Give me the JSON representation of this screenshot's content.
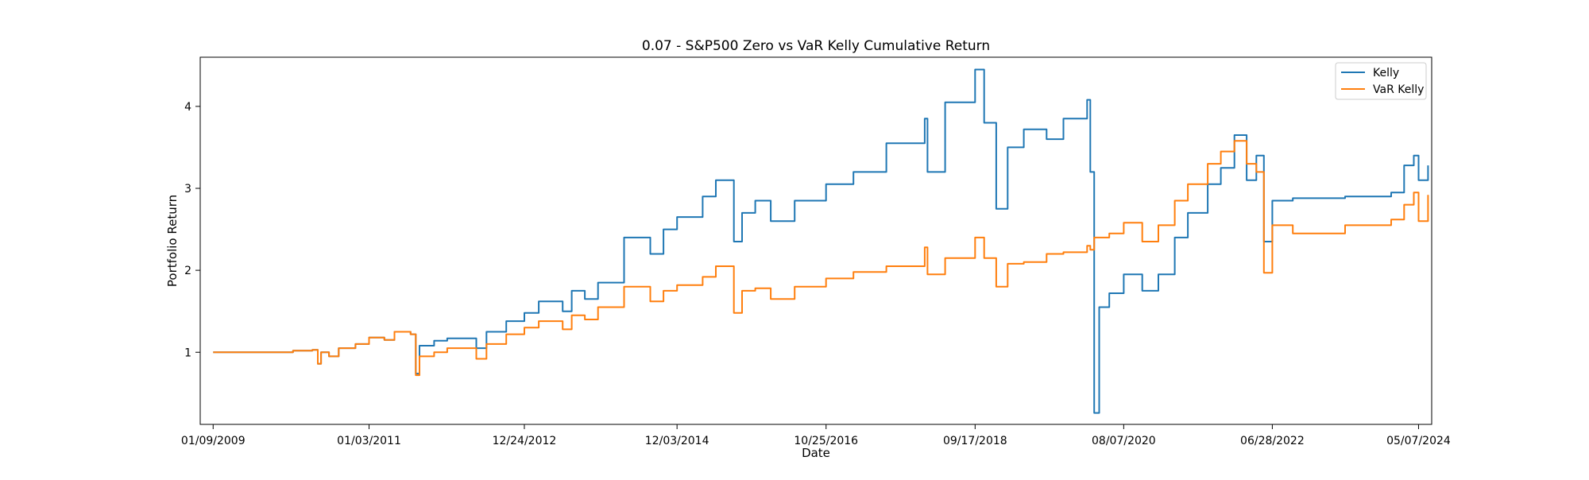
{
  "chart_data": {
    "type": "line",
    "title": "0.07 - S&P500 Zero vs VaR Kelly Cumulative Return",
    "xlabel": "Date",
    "ylabel": "Portfolio Return",
    "x_range": [
      "2008-11-10",
      "2024-07-07"
    ],
    "y_range": [
      0.12,
      4.6
    ],
    "x_ticks": [
      {
        "date": "2009-01-09",
        "label": "01/09/2009"
      },
      {
        "date": "2011-01-03",
        "label": "01/03/2011"
      },
      {
        "date": "2012-12-24",
        "label": "12/24/2012"
      },
      {
        "date": "2014-12-03",
        "label": "12/03/2014"
      },
      {
        "date": "2016-10-25",
        "label": "10/25/2016"
      },
      {
        "date": "2018-09-17",
        "label": "09/17/2018"
      },
      {
        "date": "2020-08-07",
        "label": "08/07/2020"
      },
      {
        "date": "2022-06-28",
        "label": "06/28/2022"
      },
      {
        "date": "2024-05-07",
        "label": "05/07/2024"
      }
    ],
    "y_ticks": [
      1,
      2,
      3,
      4
    ],
    "grid": false,
    "legend_position": "top-right",
    "series": [
      {
        "name": "Kelly",
        "color": "#1f77b4",
        "points": [
          [
            "2009-01-09",
            1.0
          ],
          [
            "2010-01-15",
            1.02
          ],
          [
            "2010-04-15",
            1.03
          ],
          [
            "2010-05-10",
            0.86
          ],
          [
            "2010-05-25",
            1.0
          ],
          [
            "2010-07-01",
            0.95
          ],
          [
            "2010-08-15",
            1.05
          ],
          [
            "2010-11-01",
            1.1
          ],
          [
            "2011-01-03",
            1.18
          ],
          [
            "2011-03-15",
            1.15
          ],
          [
            "2011-05-01",
            1.25
          ],
          [
            "2011-07-15",
            1.22
          ],
          [
            "2011-08-08",
            0.74
          ],
          [
            "2011-08-25",
            1.08
          ],
          [
            "2011-11-01",
            1.14
          ],
          [
            "2012-01-01",
            1.17
          ],
          [
            "2012-05-15",
            1.05
          ],
          [
            "2012-07-01",
            1.25
          ],
          [
            "2012-10-01",
            1.38
          ],
          [
            "2012-12-24",
            1.48
          ],
          [
            "2013-03-01",
            1.62
          ],
          [
            "2013-06-20",
            1.5
          ],
          [
            "2013-08-01",
            1.75
          ],
          [
            "2013-10-01",
            1.65
          ],
          [
            "2013-12-01",
            1.85
          ],
          [
            "2014-04-01",
            2.4
          ],
          [
            "2014-08-01",
            2.2
          ],
          [
            "2014-10-01",
            2.5
          ],
          [
            "2014-12-03",
            2.65
          ],
          [
            "2015-04-01",
            2.9
          ],
          [
            "2015-06-01",
            3.1
          ],
          [
            "2015-08-24",
            2.35
          ],
          [
            "2015-10-01",
            2.7
          ],
          [
            "2015-12-01",
            2.85
          ],
          [
            "2016-02-11",
            2.6
          ],
          [
            "2016-06-01",
            2.85
          ],
          [
            "2016-10-25",
            3.05
          ],
          [
            "2017-03-01",
            3.2
          ],
          [
            "2017-08-01",
            3.55
          ],
          [
            "2018-01-26",
            3.85
          ],
          [
            "2018-02-08",
            3.2
          ],
          [
            "2018-05-01",
            4.05
          ],
          [
            "2018-09-17",
            4.45
          ],
          [
            "2018-10-29",
            3.8
          ],
          [
            "2018-12-24",
            2.75
          ],
          [
            "2019-02-15",
            3.5
          ],
          [
            "2019-05-01",
            3.72
          ],
          [
            "2019-08-15",
            3.6
          ],
          [
            "2019-11-01",
            3.85
          ],
          [
            "2020-02-19",
            4.08
          ],
          [
            "2020-03-05",
            3.2
          ],
          [
            "2020-03-23",
            0.26
          ],
          [
            "2020-04-15",
            1.55
          ],
          [
            "2020-06-01",
            1.72
          ],
          [
            "2020-08-07",
            1.95
          ],
          [
            "2020-11-01",
            1.75
          ],
          [
            "2021-01-15",
            1.95
          ],
          [
            "2021-04-01",
            2.4
          ],
          [
            "2021-06-01",
            2.7
          ],
          [
            "2021-09-01",
            3.05
          ],
          [
            "2021-11-01",
            3.25
          ],
          [
            "2022-01-03",
            3.65
          ],
          [
            "2022-03-01",
            3.1
          ],
          [
            "2022-04-15",
            3.4
          ],
          [
            "2022-05-20",
            2.35
          ],
          [
            "2022-06-28",
            2.85
          ],
          [
            "2022-10-01",
            2.88
          ],
          [
            "2023-06-01",
            2.9
          ],
          [
            "2024-01-01",
            2.95
          ],
          [
            "2024-03-01",
            3.28
          ],
          [
            "2024-04-15",
            3.4
          ],
          [
            "2024-05-07",
            3.1
          ],
          [
            "2024-06-20",
            3.28
          ]
        ]
      },
      {
        "name": "VaR Kelly",
        "color": "#ff7f0e",
        "points": [
          [
            "2009-01-09",
            1.0
          ],
          [
            "2010-01-15",
            1.02
          ],
          [
            "2010-04-15",
            1.03
          ],
          [
            "2010-05-10",
            0.86
          ],
          [
            "2010-05-25",
            1.0
          ],
          [
            "2010-07-01",
            0.95
          ],
          [
            "2010-08-15",
            1.05
          ],
          [
            "2010-11-01",
            1.1
          ],
          [
            "2011-01-03",
            1.18
          ],
          [
            "2011-03-15",
            1.15
          ],
          [
            "2011-05-01",
            1.25
          ],
          [
            "2011-07-15",
            1.22
          ],
          [
            "2011-08-08",
            0.72
          ],
          [
            "2011-08-25",
            0.95
          ],
          [
            "2011-11-01",
            1.0
          ],
          [
            "2012-01-01",
            1.05
          ],
          [
            "2012-05-15",
            0.92
          ],
          [
            "2012-07-01",
            1.1
          ],
          [
            "2012-10-01",
            1.22
          ],
          [
            "2012-12-24",
            1.3
          ],
          [
            "2013-03-01",
            1.38
          ],
          [
            "2013-06-20",
            1.28
          ],
          [
            "2013-08-01",
            1.45
          ],
          [
            "2013-10-01",
            1.4
          ],
          [
            "2013-12-01",
            1.55
          ],
          [
            "2014-04-01",
            1.8
          ],
          [
            "2014-08-01",
            1.62
          ],
          [
            "2014-10-01",
            1.75
          ],
          [
            "2014-12-03",
            1.82
          ],
          [
            "2015-04-01",
            1.92
          ],
          [
            "2015-06-01",
            2.05
          ],
          [
            "2015-08-24",
            1.48
          ],
          [
            "2015-10-01",
            1.75
          ],
          [
            "2015-12-01",
            1.78
          ],
          [
            "2016-02-11",
            1.65
          ],
          [
            "2016-06-01",
            1.8
          ],
          [
            "2016-10-25",
            1.9
          ],
          [
            "2017-03-01",
            1.98
          ],
          [
            "2017-08-01",
            2.05
          ],
          [
            "2018-01-26",
            2.28
          ],
          [
            "2018-02-08",
            1.95
          ],
          [
            "2018-05-01",
            2.15
          ],
          [
            "2018-09-17",
            2.4
          ],
          [
            "2018-10-29",
            2.15
          ],
          [
            "2018-12-24",
            1.8
          ],
          [
            "2019-02-15",
            2.08
          ],
          [
            "2019-05-01",
            2.1
          ],
          [
            "2019-08-15",
            2.2
          ],
          [
            "2019-11-01",
            2.22
          ],
          [
            "2020-02-19",
            2.3
          ],
          [
            "2020-03-05",
            2.25
          ],
          [
            "2020-03-23",
            2.4
          ],
          [
            "2020-06-01",
            2.45
          ],
          [
            "2020-08-07",
            2.58
          ],
          [
            "2020-11-01",
            2.35
          ],
          [
            "2021-01-15",
            2.55
          ],
          [
            "2021-04-01",
            2.85
          ],
          [
            "2021-06-01",
            3.05
          ],
          [
            "2021-09-01",
            3.3
          ],
          [
            "2021-11-01",
            3.45
          ],
          [
            "2022-01-03",
            3.58
          ],
          [
            "2022-03-01",
            3.3
          ],
          [
            "2022-04-15",
            3.2
          ],
          [
            "2022-05-20",
            1.97
          ],
          [
            "2022-06-28",
            2.55
          ],
          [
            "2022-10-01",
            2.45
          ],
          [
            "2023-06-01",
            2.55
          ],
          [
            "2024-01-01",
            2.62
          ],
          [
            "2024-03-01",
            2.8
          ],
          [
            "2024-04-15",
            2.95
          ],
          [
            "2024-05-07",
            2.6
          ],
          [
            "2024-06-20",
            2.92
          ]
        ]
      }
    ]
  }
}
